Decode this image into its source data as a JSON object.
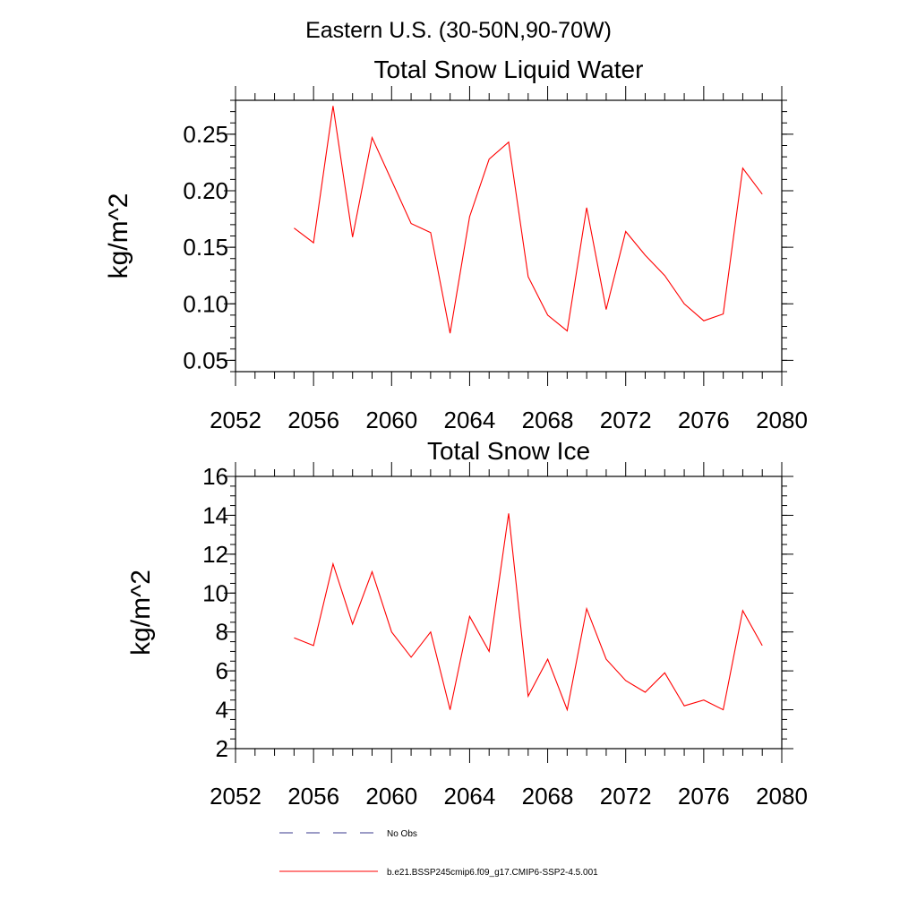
{
  "figure": {
    "title": "Eastern U.S. (30-50N,90-70W)"
  },
  "colors": {
    "model_line": "#ff0000",
    "obs_line": "#3a3a8c",
    "axes": "#000000"
  },
  "legend": {
    "entries": [
      {
        "label": "No Obs",
        "style": "dashed",
        "color": "#3a3a8c"
      },
      {
        "label": "b.e21.BSSP245cmip6.f09_g17.CMIP6-SSP2-4.5.001",
        "style": "solid",
        "color": "#ff0000"
      }
    ]
  },
  "chart_data": [
    {
      "type": "line",
      "title": "Total Snow Liquid Water",
      "ylabel": "kg/m^2",
      "xlabel": "",
      "xlim": [
        2052,
        2080
      ],
      "ylim": [
        0.04,
        0.28
      ],
      "xticks": [
        2052,
        2056,
        2060,
        2064,
        2068,
        2072,
        2076,
        2080
      ],
      "yticks": [
        0.05,
        0.1,
        0.15,
        0.2,
        0.25
      ],
      "ytick_labels": [
        "0.05",
        "0.10",
        "0.15",
        "0.20",
        "0.25"
      ],
      "grid": false,
      "series": [
        {
          "name": "b.e21.BSSP245cmip6.f09_g17.CMIP6-SSP2-4.5.001",
          "x": [
            2055,
            2056,
            2057,
            2058,
            2059,
            2060,
            2061,
            2062,
            2063,
            2064,
            2065,
            2066,
            2067,
            2068,
            2069,
            2070,
            2071,
            2072,
            2073,
            2074,
            2075,
            2076,
            2077,
            2078,
            2079
          ],
          "values": [
            0.167,
            0.154,
            0.275,
            0.159,
            0.247,
            0.209,
            0.171,
            0.163,
            0.074,
            0.177,
            0.228,
            0.243,
            0.124,
            0.09,
            0.076,
            0.185,
            0.095,
            0.164,
            0.143,
            0.125,
            0.1,
            0.085,
            0.091,
            0.22,
            0.197
          ]
        }
      ]
    },
    {
      "type": "line",
      "title": "Total Snow Ice",
      "ylabel": "kg/m^2",
      "xlabel": "",
      "xlim": [
        2052,
        2080
      ],
      "ylim": [
        2,
        16
      ],
      "xticks": [
        2052,
        2056,
        2060,
        2064,
        2068,
        2072,
        2076,
        2080
      ],
      "yticks": [
        2,
        4,
        6,
        8,
        10,
        12,
        14,
        16
      ],
      "ytick_labels": [
        "2",
        "4",
        "6",
        "8",
        "10",
        "12",
        "14",
        "16"
      ],
      "grid": false,
      "series": [
        {
          "name": "b.e21.BSSP245cmip6.f09_g17.CMIP6-SSP2-4.5.001",
          "x": [
            2055,
            2056,
            2057,
            2058,
            2059,
            2060,
            2061,
            2062,
            2063,
            2064,
            2065,
            2066,
            2067,
            2068,
            2069,
            2070,
            2071,
            2072,
            2073,
            2074,
            2075,
            2076,
            2077,
            2078,
            2079
          ],
          "values": [
            7.7,
            7.3,
            11.5,
            8.4,
            11.1,
            8.0,
            6.7,
            8.0,
            4.0,
            8.8,
            7.0,
            14.1,
            4.7,
            6.6,
            4.0,
            9.2,
            6.6,
            5.5,
            4.9,
            5.9,
            4.2,
            4.5,
            4.0,
            9.1,
            7.3
          ]
        }
      ]
    }
  ]
}
